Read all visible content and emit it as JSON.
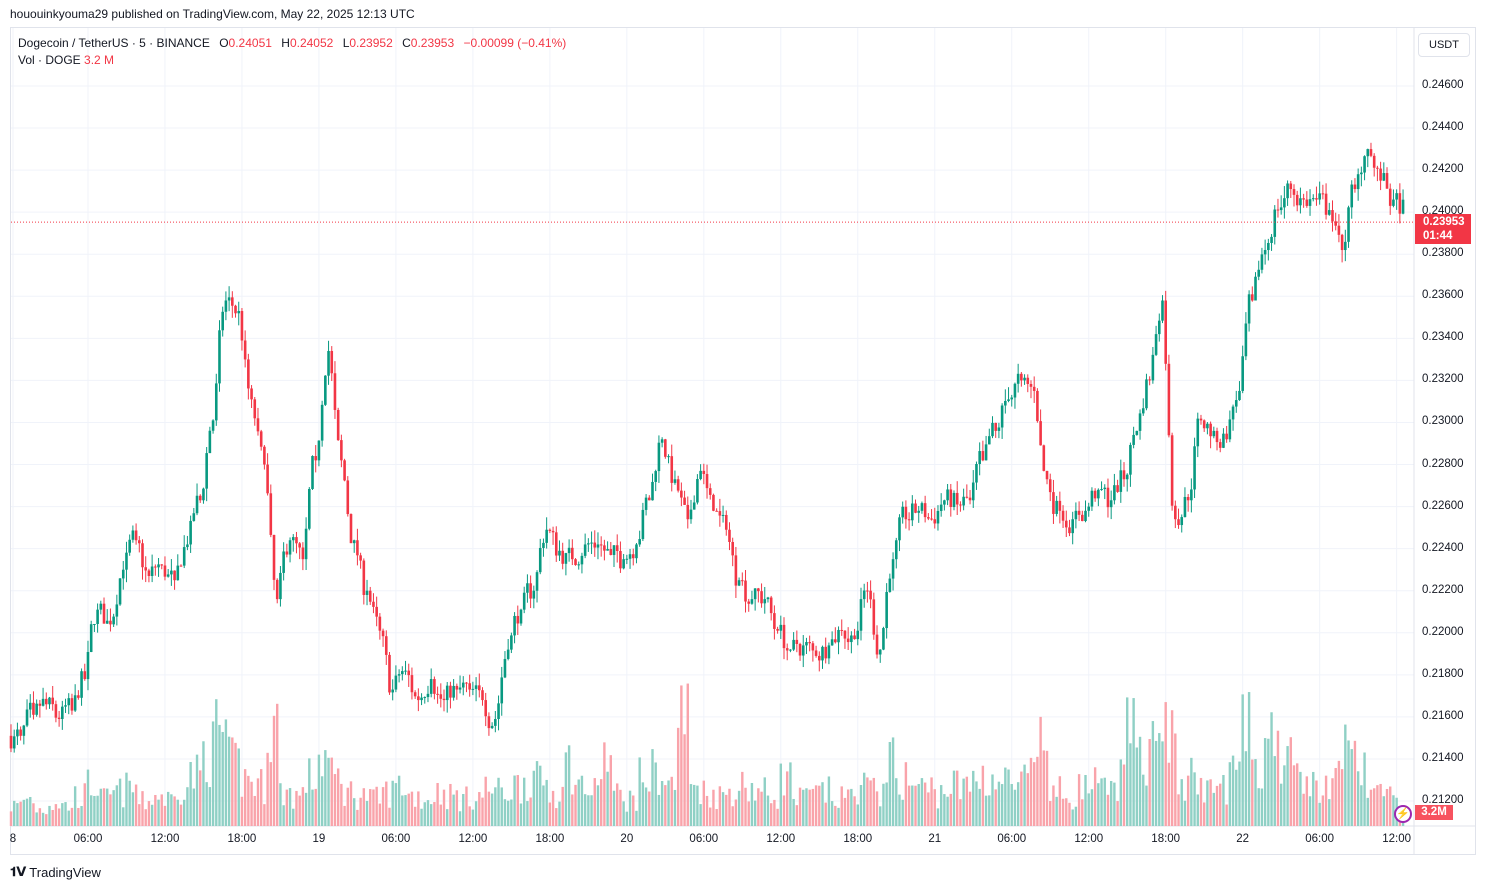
{
  "publisher_line": "hououinkyouma29 published on TradingView.com, May 22, 2025 12:13 UTC",
  "legend": {
    "symbol": "Dogecoin / TetherUS · 5 · BINANCE",
    "o_label": "O",
    "o": "0.24051",
    "h_label": "H",
    "h": "0.24052",
    "l_label": "L",
    "l": "0.23952",
    "c_label": "C",
    "c": "0.23953",
    "change": "−0.00099 (−0.41%)",
    "vol_label": "Vol · DOGE",
    "vol": "3.2 M"
  },
  "currency_button": "USDT",
  "last_price": {
    "price": "0.23953",
    "countdown": "01:44"
  },
  "volume_badge": "3.2M",
  "brand": "TradingView",
  "colors": {
    "up": "#089981",
    "down": "#f23645",
    "up_volume": "#8fd0c5",
    "down_volume": "#f9a3aa",
    "price_line": "#f23645"
  },
  "chart_data": {
    "type": "candlestick",
    "interval": "5",
    "price_axis": {
      "ticks": [
        "0.24600",
        "0.24400",
        "0.24200",
        "0.24000",
        "0.23800",
        "0.23600",
        "0.23400",
        "0.23200",
        "0.23000",
        "0.22800",
        "0.22600",
        "0.22400",
        "0.22200",
        "0.22000",
        "0.21800",
        "0.21600",
        "0.21400",
        "0.21200"
      ],
      "range": [
        0.2108,
        0.2478
      ]
    },
    "time_axis": {
      "ticks": [
        "8",
        "06:00",
        "12:00",
        "18:00",
        "19",
        "06:00",
        "12:00",
        "18:00",
        "20",
        "06:00",
        "12:00",
        "18:00",
        "21",
        "06:00",
        "12:00",
        "18:00",
        "22",
        "06:00",
        "12:00"
      ]
    },
    "hourly_close_approx": [
      0.2151,
      0.2161,
      0.2166,
      0.2159,
      0.2163,
      0.2178,
      0.2211,
      0.2204,
      0.223,
      0.2244,
      0.2227,
      0.2232,
      0.2225,
      0.2242,
      0.2263,
      0.2301,
      0.2358,
      0.2353,
      0.2311,
      0.228,
      0.2216,
      0.2244,
      0.2235,
      0.2282,
      0.2334,
      0.2282,
      0.2244,
      0.222,
      0.2201,
      0.2173,
      0.2182,
      0.2168,
      0.2178,
      0.2168,
      0.2173,
      0.2173,
      0.2168,
      0.2159,
      0.2192,
      0.2211,
      0.222,
      0.2249,
      0.2239,
      0.2235,
      0.2242,
      0.2242,
      0.2237,
      0.2235,
      0.2242,
      0.2263,
      0.2292,
      0.2273,
      0.2254,
      0.2277,
      0.2258,
      0.2249,
      0.2225,
      0.2216,
      0.2216,
      0.2201,
      0.2192,
      0.2194,
      0.2189,
      0.2194,
      0.2201,
      0.2197,
      0.222,
      0.2192,
      0.2235,
      0.2254,
      0.2258,
      0.2254,
      0.2263,
      0.2261,
      0.2263,
      0.2282,
      0.2296,
      0.2311,
      0.232,
      0.2315,
      0.2273,
      0.2258,
      0.2254,
      0.2258,
      0.2268,
      0.2263,
      0.2273,
      0.2296,
      0.232,
      0.2358,
      0.2254,
      0.2263,
      0.2301,
      0.2296,
      0.2292,
      0.2315,
      0.2358,
      0.2382,
      0.2401,
      0.2411,
      0.2406,
      0.2406,
      0.2401,
      0.2382,
      0.2411,
      0.243,
      0.2415,
      0.2406,
      0.2401,
      0.23953
    ],
    "hourly_volume_peak_millions_approx": [
      6,
      8,
      5,
      7,
      6,
      9,
      12,
      8,
      10,
      11,
      7,
      9,
      8,
      12,
      15,
      22,
      28,
      18,
      14,
      12,
      30,
      10,
      9,
      14,
      20,
      14,
      10,
      9,
      8,
      10,
      12,
      9,
      8,
      10,
      9,
      8,
      9,
      11,
      10,
      12,
      14,
      13,
      10,
      18,
      12,
      10,
      20,
      9,
      8,
      14,
      16,
      12,
      32,
      12,
      10,
      9,
      11,
      12,
      10,
      9,
      14,
      8,
      9,
      10,
      8,
      9,
      12,
      10,
      18,
      14,
      12,
      11,
      10,
      12,
      11,
      15,
      14,
      13,
      12,
      14,
      24,
      10,
      9,
      11,
      12,
      10,
      14,
      26,
      22,
      40,
      26,
      12,
      14,
      10,
      12,
      16,
      27,
      20,
      30,
      18,
      14,
      12,
      11,
      14,
      22,
      16,
      10,
      8,
      6,
      3.2
    ],
    "last_price": 0.23953
  }
}
